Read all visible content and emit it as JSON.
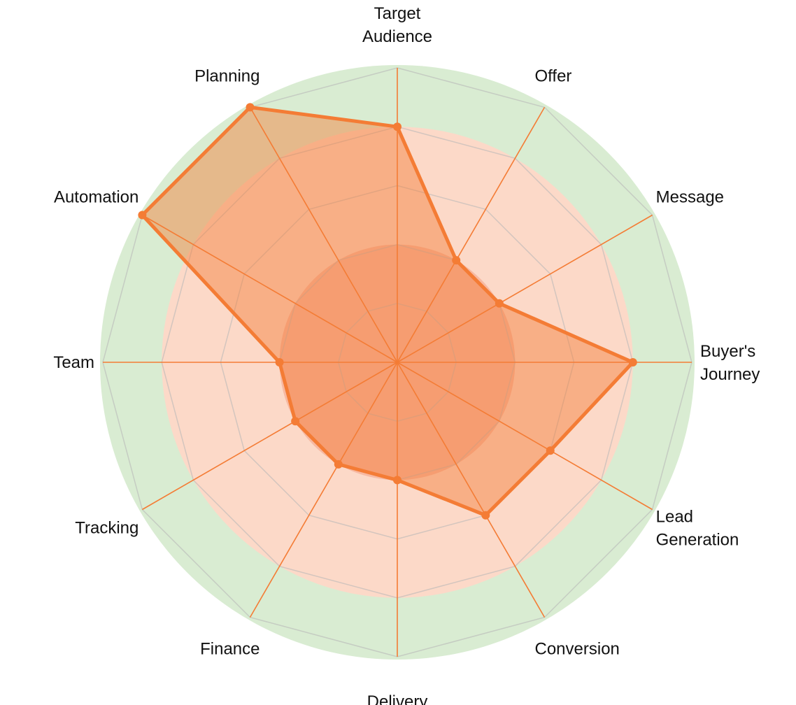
{
  "chart_data": {
    "type": "radar",
    "title": "",
    "categories": [
      "Target Audience",
      "Offer",
      "Message",
      "Buyer's Journey",
      "Lead Generation",
      "Conversion",
      "Delivery",
      "Finance",
      "Tracking",
      "Team",
      "Automation",
      "Planning"
    ],
    "series": [
      {
        "values": [
          4,
          2,
          2,
          4,
          3,
          3,
          2,
          2,
          2,
          2,
          5,
          5
        ]
      }
    ],
    "rlim": [
      0,
      5
    ],
    "grid_levels": [
      1,
      2,
      3,
      4,
      5
    ],
    "background_bands": [
      {
        "from": 0,
        "to": 2,
        "color": "#f29e83"
      },
      {
        "from": 2,
        "to": 4,
        "color": "#fcd9c8"
      },
      {
        "from": 4,
        "to": 5,
        "color": "#d9ecd2"
      }
    ],
    "colors": {
      "series": "#f47c35",
      "grid": "#b8b8b8"
    },
    "legend": "none"
  }
}
